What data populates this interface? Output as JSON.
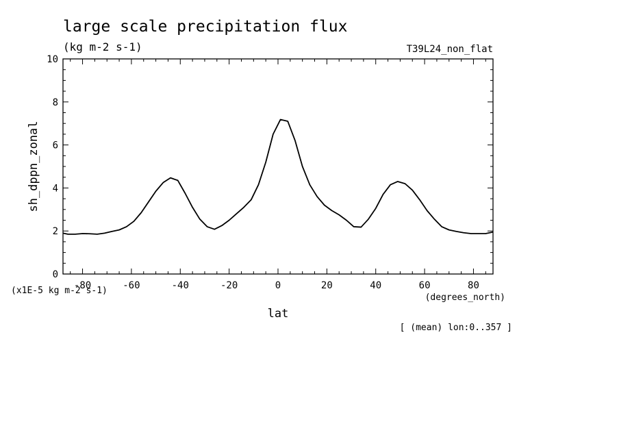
{
  "chart_data": {
    "type": "line",
    "title": "large scale precipitation flux",
    "units_label": "(kg m-2 s-1)",
    "dataset_label": "T39L24_non_flat",
    "ylabel": "sh_dppn_zonal",
    "xlabel": "lat",
    "x_units_label": "(degrees_north)",
    "scale_label": "(x1E-5 kg m-2 s-1)",
    "footnote": "[ (mean) lon:0..357 ]",
    "xlim": [
      -88,
      88
    ],
    "ylim": [
      0,
      10
    ],
    "xticks": [
      -80,
      -60,
      -40,
      -20,
      0,
      20,
      40,
      60,
      80
    ],
    "xtick_labels": [
      "-80",
      "-60",
      "-40",
      "-20",
      "0",
      "20",
      "40",
      "60",
      "80"
    ],
    "yticks": [
      0,
      2,
      4,
      6,
      8,
      10
    ],
    "ytick_labels": [
      "0",
      "2",
      "4",
      "6",
      "8",
      "10"
    ],
    "grid": false,
    "line_color": "#000000",
    "series": [
      {
        "x": [
          -88,
          -86,
          -83,
          -80,
          -77,
          -74,
          -71,
          -68,
          -65,
          -62,
          -59,
          -56,
          -53,
          -50,
          -47,
          -44,
          -41,
          -38,
          -35,
          -32,
          -29,
          -26,
          -23,
          -20,
          -17,
          -14,
          -11,
          -8,
          -5,
          -2,
          1,
          4,
          7,
          10,
          13,
          16,
          19,
          22,
          25,
          28,
          31,
          34,
          37,
          40,
          43,
          46,
          49,
          52,
          55,
          58,
          61,
          64,
          67,
          70,
          73,
          76,
          79,
          82,
          85,
          88
        ],
        "y": [
          1.9,
          1.85,
          1.85,
          1.88,
          1.87,
          1.85,
          1.9,
          1.98,
          2.05,
          2.2,
          2.45,
          2.85,
          3.35,
          3.85,
          4.25,
          4.47,
          4.35,
          3.75,
          3.1,
          2.55,
          2.2,
          2.08,
          2.25,
          2.5,
          2.8,
          3.1,
          3.45,
          4.15,
          5.2,
          6.5,
          7.18,
          7.1,
          6.2,
          5.0,
          4.15,
          3.6,
          3.2,
          2.95,
          2.75,
          2.5,
          2.2,
          2.18,
          2.55,
          3.05,
          3.7,
          4.15,
          4.3,
          4.2,
          3.9,
          3.45,
          2.95,
          2.55,
          2.2,
          2.05,
          1.98,
          1.92,
          1.88,
          1.88,
          1.88,
          1.95
        ]
      }
    ]
  }
}
